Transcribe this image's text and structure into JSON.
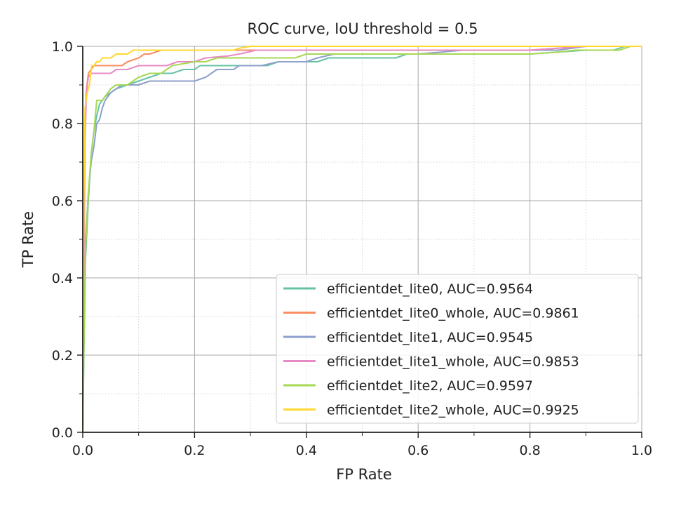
{
  "chart_data": {
    "type": "line",
    "title": "ROC curve, IoU threshold = 0.5",
    "xlabel": "FP Rate",
    "ylabel": "TP Rate",
    "xlim": [
      0.0,
      1.0
    ],
    "ylim": [
      0.0,
      1.0
    ],
    "xticks": [
      "0.0",
      "0.2",
      "0.4",
      "0.6",
      "0.8",
      "1.0"
    ],
    "yticks": [
      "0.0",
      "0.2",
      "0.4",
      "0.6",
      "0.8",
      "1.0"
    ],
    "grid": true,
    "legend_position": "lower-right",
    "series": [
      {
        "name": "efficientdet_lite0, AUC=0.9564",
        "color": "#66c2a5",
        "points": [
          [
            0,
            0
          ],
          [
            0.002,
            0.2
          ],
          [
            0.005,
            0.45
          ],
          [
            0.01,
            0.6
          ],
          [
            0.015,
            0.72
          ],
          [
            0.02,
            0.78
          ],
          [
            0.025,
            0.82
          ],
          [
            0.03,
            0.85
          ],
          [
            0.04,
            0.87
          ],
          [
            0.05,
            0.88
          ],
          [
            0.06,
            0.89
          ],
          [
            0.08,
            0.9
          ],
          [
            0.1,
            0.91
          ],
          [
            0.12,
            0.92
          ],
          [
            0.14,
            0.93
          ],
          [
            0.16,
            0.93
          ],
          [
            0.18,
            0.94
          ],
          [
            0.2,
            0.94
          ],
          [
            0.21,
            0.95
          ],
          [
            0.26,
            0.95
          ],
          [
            0.3,
            0.95
          ],
          [
            0.33,
            0.95
          ],
          [
            0.35,
            0.96
          ],
          [
            0.38,
            0.96
          ],
          [
            0.42,
            0.96
          ],
          [
            0.44,
            0.97
          ],
          [
            0.5,
            0.97
          ],
          [
            0.56,
            0.97
          ],
          [
            0.58,
            0.98
          ],
          [
            0.7,
            0.98
          ],
          [
            0.8,
            0.98
          ],
          [
            0.9,
            0.99
          ],
          [
            0.95,
            0.99
          ],
          [
            0.97,
            1.0
          ],
          [
            1.0,
            1.0
          ]
        ]
      },
      {
        "name": "efficientdet_lite0_whole, AUC=0.9861",
        "color": "#fc8d62",
        "points": [
          [
            0,
            0
          ],
          [
            0.002,
            0.5
          ],
          [
            0.004,
            0.8
          ],
          [
            0.006,
            0.88
          ],
          [
            0.01,
            0.93
          ],
          [
            0.015,
            0.94
          ],
          [
            0.02,
            0.95
          ],
          [
            0.04,
            0.95
          ],
          [
            0.07,
            0.95
          ],
          [
            0.08,
            0.96
          ],
          [
            0.1,
            0.97
          ],
          [
            0.11,
            0.98
          ],
          [
            0.12,
            0.98
          ],
          [
            0.14,
            0.99
          ],
          [
            0.2,
            0.99
          ],
          [
            0.3,
            0.99
          ],
          [
            0.4,
            0.99
          ],
          [
            0.5,
            0.99
          ],
          [
            0.6,
            0.99
          ],
          [
            0.7,
            0.99
          ],
          [
            0.8,
            0.99
          ],
          [
            0.9,
            1.0
          ],
          [
            1.0,
            1.0
          ]
        ]
      },
      {
        "name": "efficientdet_lite1, AUC=0.9545",
        "color": "#8da0cb",
        "points": [
          [
            0,
            0
          ],
          [
            0.002,
            0.25
          ],
          [
            0.005,
            0.5
          ],
          [
            0.01,
            0.62
          ],
          [
            0.015,
            0.7
          ],
          [
            0.02,
            0.74
          ],
          [
            0.025,
            0.8
          ],
          [
            0.03,
            0.81
          ],
          [
            0.035,
            0.84
          ],
          [
            0.04,
            0.86
          ],
          [
            0.05,
            0.88
          ],
          [
            0.06,
            0.89
          ],
          [
            0.07,
            0.9
          ],
          [
            0.1,
            0.9
          ],
          [
            0.12,
            0.91
          ],
          [
            0.15,
            0.91
          ],
          [
            0.2,
            0.91
          ],
          [
            0.22,
            0.92
          ],
          [
            0.24,
            0.94
          ],
          [
            0.27,
            0.94
          ],
          [
            0.28,
            0.95
          ],
          [
            0.32,
            0.95
          ],
          [
            0.35,
            0.96
          ],
          [
            0.4,
            0.96
          ],
          [
            0.42,
            0.97
          ],
          [
            0.45,
            0.98
          ],
          [
            0.5,
            0.98
          ],
          [
            0.6,
            0.98
          ],
          [
            0.68,
            0.99
          ],
          [
            0.75,
            0.99
          ],
          [
            0.85,
            0.99
          ],
          [
            0.9,
            1.0
          ],
          [
            1.0,
            1.0
          ]
        ]
      },
      {
        "name": "efficientdet_lite1_whole, AUC=0.9853",
        "color": "#e78ac3",
        "points": [
          [
            0,
            0
          ],
          [
            0.002,
            0.4
          ],
          [
            0.004,
            0.75
          ],
          [
            0.006,
            0.85
          ],
          [
            0.008,
            0.9
          ],
          [
            0.01,
            0.92
          ],
          [
            0.015,
            0.93
          ],
          [
            0.02,
            0.93
          ],
          [
            0.05,
            0.93
          ],
          [
            0.06,
            0.94
          ],
          [
            0.08,
            0.94
          ],
          [
            0.1,
            0.95
          ],
          [
            0.15,
            0.95
          ],
          [
            0.17,
            0.96
          ],
          [
            0.2,
            0.96
          ],
          [
            0.22,
            0.97
          ],
          [
            0.26,
            0.975
          ],
          [
            0.28,
            0.98
          ],
          [
            0.31,
            0.99
          ],
          [
            0.35,
            0.99
          ],
          [
            0.4,
            0.99
          ],
          [
            0.5,
            0.99
          ],
          [
            0.6,
            0.99
          ],
          [
            0.7,
            0.99
          ],
          [
            0.8,
            0.99
          ],
          [
            0.9,
            1.0
          ],
          [
            1.0,
            1.0
          ]
        ]
      },
      {
        "name": "efficientdet_lite2, AUC=0.9597",
        "color": "#a6d854",
        "points": [
          [
            0,
            0
          ],
          [
            0.002,
            0.22
          ],
          [
            0.005,
            0.48
          ],
          [
            0.01,
            0.62
          ],
          [
            0.015,
            0.72
          ],
          [
            0.02,
            0.78
          ],
          [
            0.025,
            0.86
          ],
          [
            0.035,
            0.86
          ],
          [
            0.045,
            0.88
          ],
          [
            0.05,
            0.89
          ],
          [
            0.06,
            0.9
          ],
          [
            0.08,
            0.9
          ],
          [
            0.1,
            0.92
          ],
          [
            0.12,
            0.93
          ],
          [
            0.14,
            0.93
          ],
          [
            0.16,
            0.95
          ],
          [
            0.2,
            0.96
          ],
          [
            0.22,
            0.96
          ],
          [
            0.24,
            0.97
          ],
          [
            0.3,
            0.97
          ],
          [
            0.38,
            0.97
          ],
          [
            0.4,
            0.98
          ],
          [
            0.45,
            0.98
          ],
          [
            0.55,
            0.98
          ],
          [
            0.6,
            0.98
          ],
          [
            0.7,
            0.98
          ],
          [
            0.8,
            0.98
          ],
          [
            0.85,
            0.985
          ],
          [
            0.88,
            0.99
          ],
          [
            0.96,
            0.99
          ],
          [
            0.98,
            1.0
          ],
          [
            1.0,
            1.0
          ]
        ]
      },
      {
        "name": "efficientdet_lite2_whole, AUC=0.9925",
        "color": "#ffd92f",
        "points": [
          [
            0,
            0
          ],
          [
            0.002,
            0.6
          ],
          [
            0.004,
            0.84
          ],
          [
            0.008,
            0.88
          ],
          [
            0.012,
            0.9
          ],
          [
            0.016,
            0.95
          ],
          [
            0.02,
            0.95
          ],
          [
            0.025,
            0.96
          ],
          [
            0.03,
            0.96
          ],
          [
            0.035,
            0.97
          ],
          [
            0.05,
            0.97
          ],
          [
            0.06,
            0.98
          ],
          [
            0.08,
            0.98
          ],
          [
            0.09,
            0.99
          ],
          [
            0.12,
            0.99
          ],
          [
            0.2,
            0.99
          ],
          [
            0.27,
            0.99
          ],
          [
            0.28,
            0.995
          ],
          [
            0.3,
            1.0
          ],
          [
            0.4,
            1.0
          ],
          [
            0.6,
            1.0
          ],
          [
            0.8,
            1.0
          ],
          [
            1.0,
            1.0
          ]
        ]
      }
    ]
  }
}
